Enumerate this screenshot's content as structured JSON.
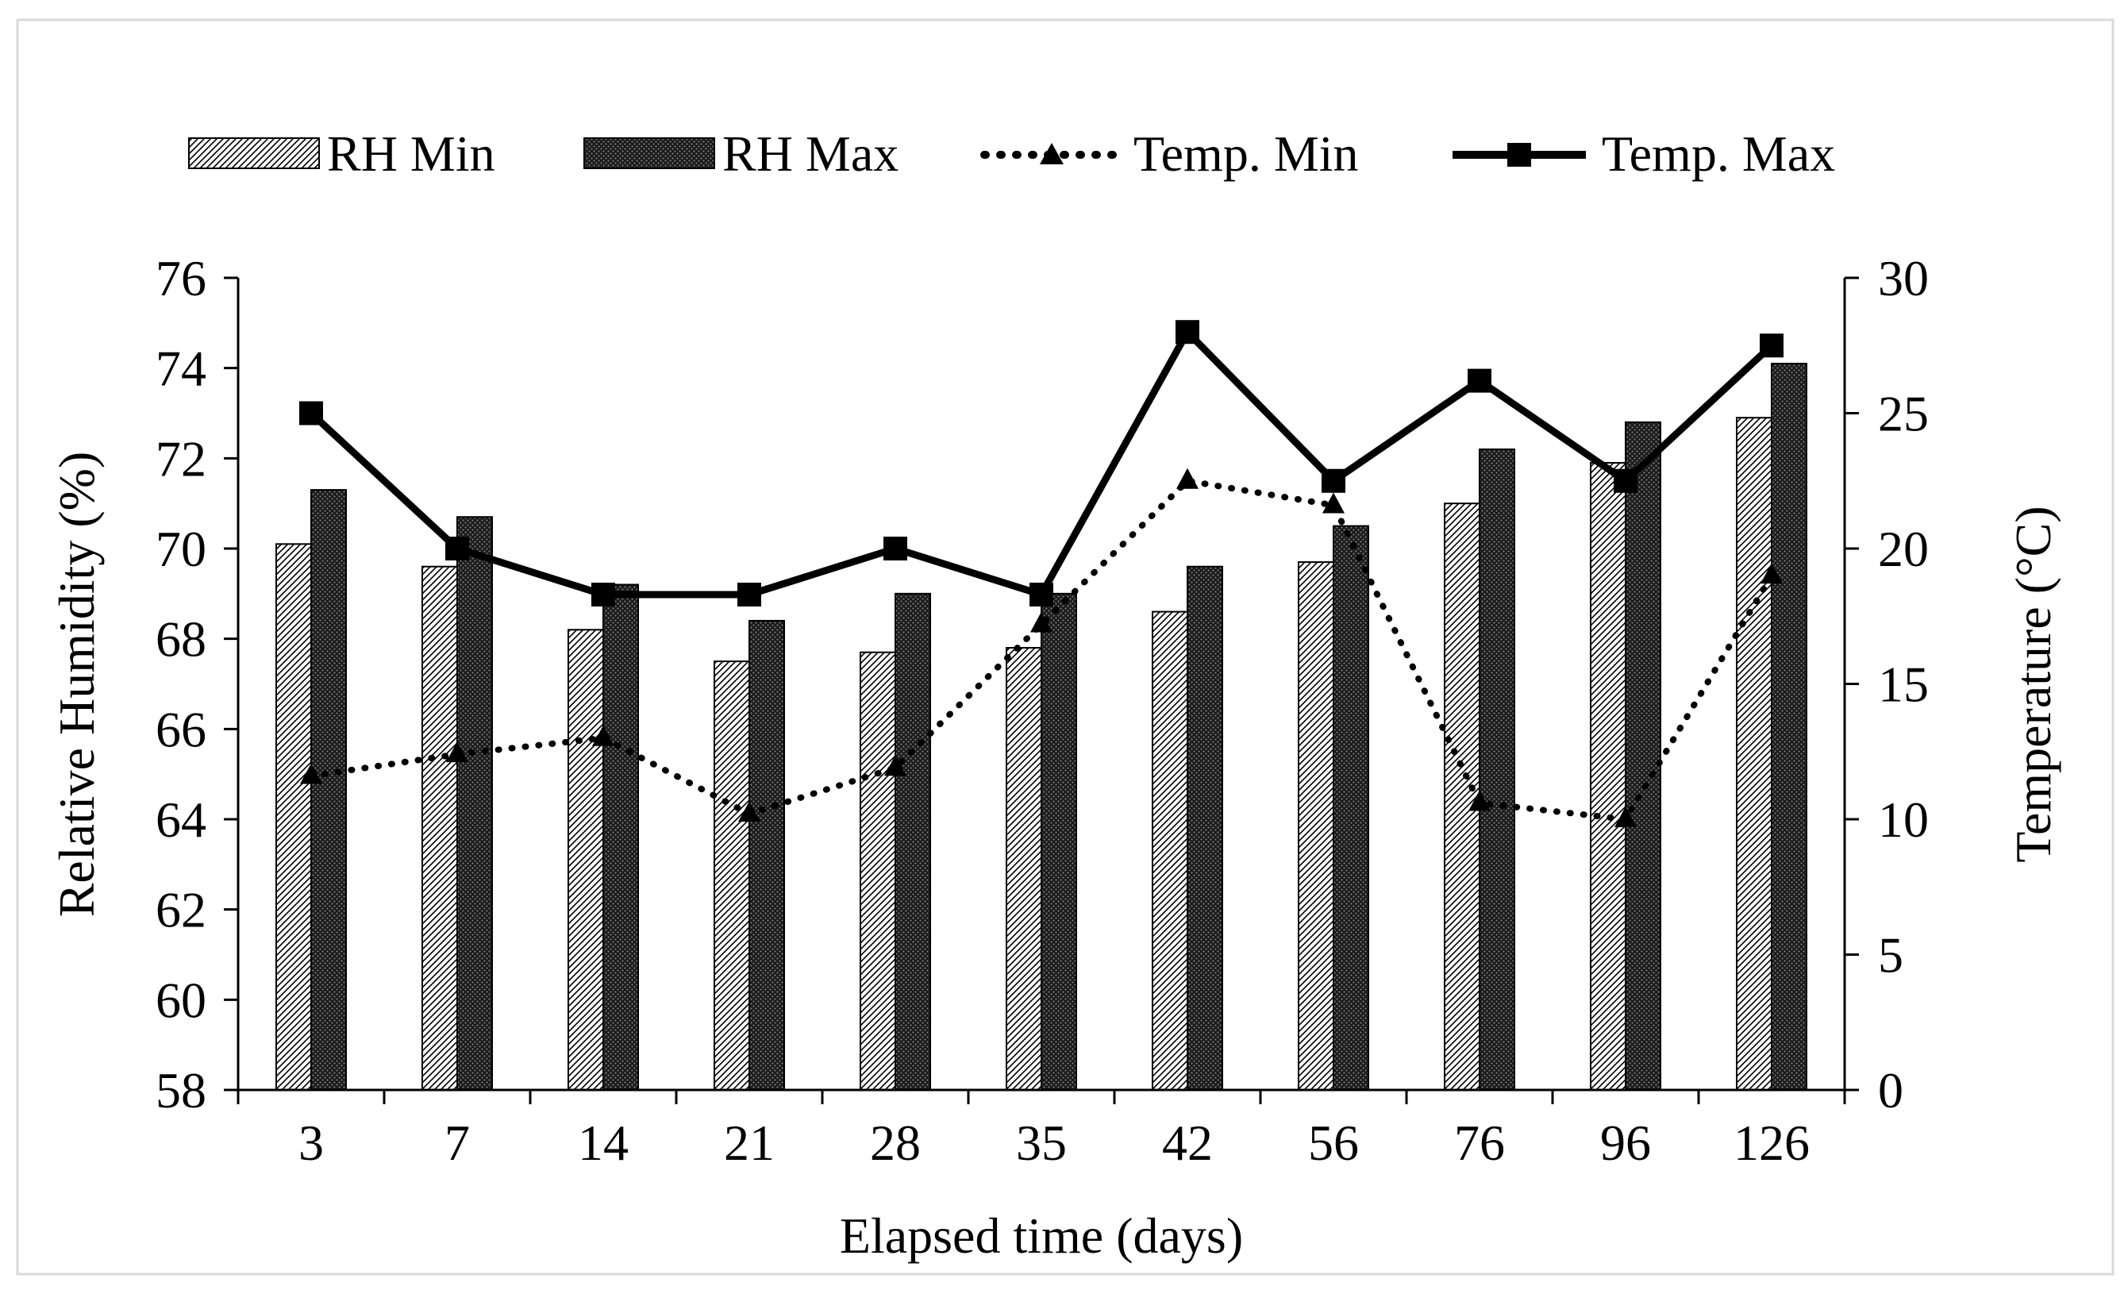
{
  "chart_data": {
    "type": "bar",
    "categories": [
      "3",
      "7",
      "14",
      "21",
      "28",
      "35",
      "42",
      "56",
      "76",
      "96",
      "126"
    ],
    "xlabel": "Elapsed time (days)",
    "ylabel": "Relative Humidity (%)",
    "y2label": "Temperature (°C)",
    "ylim": [
      58,
      76
    ],
    "yticks": [
      58,
      60,
      62,
      64,
      66,
      68,
      70,
      72,
      74,
      76
    ],
    "y2lim": [
      0,
      30
    ],
    "y2ticks": [
      0,
      5,
      10,
      15,
      20,
      25,
      30
    ],
    "legend_position": "top",
    "grid": false,
    "series": [
      {
        "name": "RH Min",
        "type": "bar",
        "axis": "left",
        "pattern": "diagonal-hatch-light",
        "values": [
          70.1,
          69.6,
          68.2,
          67.5,
          67.7,
          67.8,
          68.6,
          69.7,
          71.0,
          71.9,
          72.9
        ]
      },
      {
        "name": "RH Max",
        "type": "bar",
        "axis": "left",
        "pattern": "dense-dark-dots",
        "values": [
          71.3,
          70.7,
          69.2,
          68.4,
          69.0,
          69.0,
          69.6,
          70.5,
          72.2,
          72.8,
          74.1
        ]
      },
      {
        "name": "Temp. Min",
        "type": "line",
        "axis": "right",
        "line_style": "dotted",
        "marker": "triangle",
        "values": [
          11.6,
          12.4,
          13.0,
          10.2,
          11.9,
          17.2,
          22.5,
          21.6,
          10.6,
          10.0,
          19.0
        ]
      },
      {
        "name": "Temp. Max",
        "type": "line",
        "axis": "right",
        "line_style": "solid",
        "marker": "square",
        "values": [
          25.0,
          20.0,
          18.3,
          18.3,
          20.0,
          18.3,
          28.0,
          22.5,
          26.2,
          22.5,
          27.5
        ]
      }
    ],
    "colors": {
      "axis": "#000000",
      "bar_min_bg": "#ffffff",
      "bar_max_bg": "#1c1c1c",
      "line": "#000000",
      "frame": "#d9d9d9"
    }
  }
}
